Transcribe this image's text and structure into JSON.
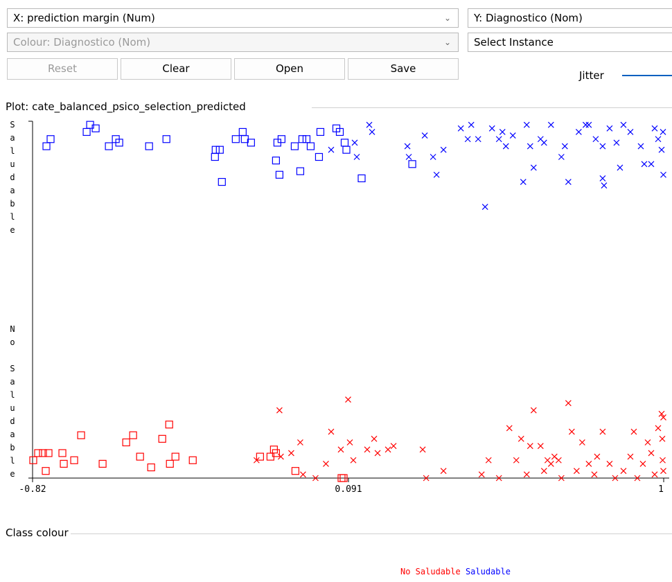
{
  "controls": {
    "x_axis": "X: prediction margin (Num)",
    "y_axis": "Y: Diagnostico (Nom)",
    "colour": "Colour: Diagnostico (Nom)",
    "select_instance": "Select Instance",
    "buttons": [
      "Reset",
      "Clear",
      "Open",
      "Save"
    ],
    "jitter": "Jitter"
  },
  "plot_title": "Plot: cate_balanced_psico_selection_predicted",
  "legend_title": "Class colour",
  "chart_data": {
    "type": "scatter",
    "xlim": [
      -0.82,
      1
    ],
    "xticks": [
      -0.82,
      0.091,
      1
    ],
    "ylim": [
      0,
      1
    ],
    "yticks": [
      {
        "value": 0,
        "label": "No Saludable"
      },
      {
        "value": 1,
        "label": "Saludable"
      }
    ],
    "series": [
      {
        "name": "No Saludable",
        "color": "#ff0000",
        "x": [
          -0.818,
          -0.804,
          -0.79,
          -0.782,
          -0.774,
          -0.734,
          -0.73,
          -0.7,
          -0.68,
          -0.618,
          -0.55,
          -0.53,
          -0.51,
          -0.478,
          -0.446,
          -0.426,
          -0.424,
          -0.408,
          -0.358,
          -0.164,
          -0.134,
          -0.124,
          -0.118,
          -0.062,
          0.071,
          0.077,
          -0.108,
          0.09,
          -0.174,
          -0.104,
          -0.074,
          -0.048,
          -0.04,
          -0.004,
          0.026,
          0.041,
          0.069,
          0.095,
          0.105,
          0.145,
          0.165,
          0.175,
          0.205,
          0.221,
          0.305,
          0.315,
          0.365,
          0.475,
          0.495,
          0.525,
          0.555,
          0.575,
          0.589,
          0.615,
          0.625,
          0.645,
          0.655,
          0.675,
          0.685,
          0.697,
          0.705,
          0.725,
          0.735,
          0.749,
          0.765,
          0.784,
          0.8,
          0.808,
          0.824,
          0.844,
          0.86,
          0.884,
          0.904,
          0.914,
          0.924,
          0.94,
          0.954,
          0.964,
          0.974,
          0.984,
          0.994,
          0.996,
          0.997,
          0.999,
          0.999,
          0.605,
          0.665
        ],
        "values": [
          0.05,
          0.07,
          0.07,
          0.02,
          0.07,
          0.07,
          0.04,
          0.05,
          0.12,
          0.04,
          0.1,
          0.12,
          0.06,
          0.03,
          0.11,
          0.15,
          0.04,
          0.06,
          0.05,
          0.06,
          0.06,
          0.08,
          0.07,
          0.02,
          0,
          0,
          0.19,
          0.22,
          0.05,
          0.06,
          0.07,
          0.1,
          0.01,
          0,
          0.04,
          0.13,
          0.08,
          0.1,
          0.05,
          0.08,
          0.11,
          0.07,
          0.08,
          0.09,
          0.08,
          0,
          0.02,
          0.01,
          0.05,
          0,
          0.14,
          0.05,
          0.11,
          0.09,
          0.19,
          0.09,
          0.02,
          0.04,
          0.06,
          0.05,
          0,
          0.21,
          0.13,
          0.02,
          0.1,
          0.04,
          0.01,
          0.06,
          0.13,
          0.04,
          0,
          0.02,
          0.06,
          0.13,
          0,
          0.04,
          0.1,
          0.07,
          0.01,
          0.14,
          0.18,
          0.11,
          0.05,
          0.17,
          0.02,
          0.01,
          0.05
        ],
        "markers": [
          "square",
          "square",
          "square",
          "square",
          "square",
          "square",
          "square",
          "square",
          "square",
          "square",
          "square",
          "square",
          "square",
          "square",
          "square",
          "square",
          "square",
          "square",
          "square",
          "square",
          "square",
          "square",
          "square",
          "square",
          "square",
          "square",
          "cross",
          "cross",
          "cross",
          "cross",
          "cross",
          "cross",
          "cross",
          "cross",
          "cross",
          "cross",
          "cross",
          "cross",
          "cross",
          "cross",
          "cross",
          "cross",
          "cross",
          "cross",
          "cross",
          "cross",
          "cross",
          "cross",
          "cross",
          "cross",
          "cross",
          "cross",
          "cross",
          "cross",
          "cross",
          "cross",
          "cross",
          "cross",
          "cross",
          "cross",
          "cross",
          "cross",
          "cross",
          "cross",
          "cross",
          "cross",
          "cross",
          "cross",
          "cross",
          "cross",
          "cross",
          "cross",
          "cross",
          "cross",
          "cross",
          "cross",
          "cross",
          "cross",
          "cross",
          "cross",
          "cross",
          "cross",
          "cross",
          "cross",
          "cross",
          "cross",
          "cross"
        ]
      },
      {
        "name": "Saludable",
        "color": "#0000ff",
        "x": [
          -0.78,
          -0.768,
          -0.664,
          -0.654,
          -0.638,
          -0.6,
          -0.58,
          -0.57,
          -0.484,
          -0.434,
          -0.294,
          -0.292,
          -0.28,
          -0.274,
          -0.234,
          -0.214,
          -0.208,
          -0.19,
          -0.118,
          -0.114,
          -0.102,
          -0.108,
          -0.064,
          -0.048,
          -0.042,
          -0.03,
          -0.018,
          0.006,
          0.01,
          0.056,
          0.066,
          0.08,
          0.085,
          0.129,
          0.275,
          0.151,
          0.159,
          0.041,
          0.109,
          0.115,
          0.261,
          0.265,
          0.311,
          0.335,
          0.345,
          0.365,
          0.415,
          0.445,
          0.465,
          0.485,
          0.505,
          0.525,
          0.545,
          0.565,
          0.595,
          0.605,
          0.625,
          0.645,
          0.675,
          0.705,
          0.725,
          0.755,
          0.775,
          0.784,
          0.804,
          0.824,
          0.828,
          0.844,
          0.864,
          0.884,
          0.904,
          0.934,
          0.944,
          0.974,
          0.984,
          0.994,
          0.998,
          0.999,
          0.824,
          0.715,
          0.655,
          0.615,
          0.535,
          0.435,
          0.874,
          0.964
        ],
        "values": [
          0.93,
          0.95,
          0.97,
          0.99,
          0.98,
          0.93,
          0.95,
          0.94,
          0.93,
          0.95,
          0.9,
          0.92,
          0.92,
          0.83,
          0.95,
          0.97,
          0.95,
          0.94,
          0.89,
          0.94,
          0.95,
          0.85,
          0.93,
          0.86,
          0.95,
          0.95,
          0.93,
          0.9,
          0.97,
          0.98,
          0.97,
          0.94,
          0.92,
          0.84,
          0.88,
          0.99,
          0.97,
          0.92,
          0.94,
          0.9,
          0.93,
          0.9,
          0.96,
          0.9,
          0.85,
          0.92,
          0.98,
          0.99,
          0.95,
          0.76,
          0.98,
          0.95,
          0.93,
          0.96,
          0.83,
          0.99,
          0.87,
          0.95,
          0.99,
          0.9,
          0.83,
          0.97,
          0.99,
          0.99,
          0.95,
          0.84,
          0.82,
          0.98,
          0.94,
          0.99,
          0.97,
          0.93,
          0.88,
          0.98,
          0.95,
          0.92,
          0.97,
          0.85,
          0.93,
          0.93,
          0.94,
          0.93,
          0.97,
          0.95,
          0.87,
          0.88
        ],
        "markers": [
          "square",
          "square",
          "square",
          "square",
          "square",
          "square",
          "square",
          "square",
          "square",
          "square",
          "square",
          "square",
          "square",
          "square",
          "square",
          "square",
          "square",
          "square",
          "square",
          "square",
          "square",
          "square",
          "square",
          "square",
          "square",
          "square",
          "square",
          "square",
          "square",
          "square",
          "square",
          "square",
          "square",
          "square",
          "square",
          "cross",
          "cross",
          "cross",
          "cross",
          "cross",
          "cross",
          "cross",
          "cross",
          "cross",
          "cross",
          "cross",
          "cross",
          "cross",
          "cross",
          "cross",
          "cross",
          "cross",
          "cross",
          "cross",
          "cross",
          "cross",
          "cross",
          "cross",
          "cross",
          "cross",
          "cross",
          "cross",
          "cross",
          "cross",
          "cross",
          "cross",
          "cross",
          "cross",
          "cross",
          "cross",
          "cross",
          "cross",
          "cross",
          "cross",
          "cross",
          "cross",
          "cross",
          "cross",
          "cross",
          "cross",
          "cross",
          "cross",
          "cross",
          "cross",
          "cross",
          "cross"
        ]
      }
    ]
  }
}
